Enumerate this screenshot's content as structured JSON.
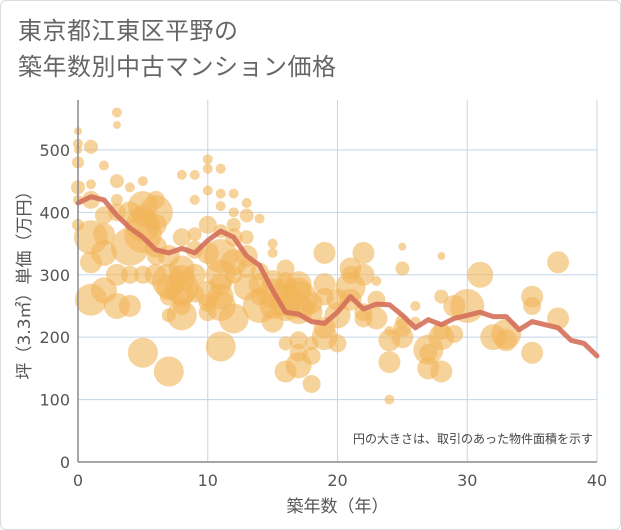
{
  "header": {
    "title_line1": "東京都江東区平野の",
    "title_line2": "築年数別中古マンション価格"
  },
  "chart_data": {
    "type": "scatter",
    "title": "東京都江東区平野の 築年数別中古マンション価格",
    "xlabel": "築年数（年）",
    "ylabel": "坪（3.3㎡）単価（万円）",
    "xlim": [
      0,
      40
    ],
    "ylim": [
      0,
      580
    ],
    "xticks": [
      0,
      10,
      20,
      30,
      40
    ],
    "yticks": [
      0,
      100,
      200,
      300,
      400,
      500
    ],
    "grid": true,
    "note": "円の大きさは、取引のあった物件面積を示す",
    "colors": {
      "bubble": "#f2b55a",
      "trend": "#d4705a",
      "grid": "#c5d5e5",
      "axis": "#888888"
    },
    "points": [
      [
        0,
        530,
        4
      ],
      [
        0,
        510,
        5
      ],
      [
        0,
        500,
        4
      ],
      [
        0,
        480,
        6
      ],
      [
        0,
        440,
        7
      ],
      [
        0,
        420,
        5
      ],
      [
        0,
        380,
        6
      ],
      [
        1,
        505,
        7
      ],
      [
        1,
        445,
        5
      ],
      [
        1,
        420,
        9
      ],
      [
        1,
        360,
        17
      ],
      [
        1,
        320,
        11
      ],
      [
        1,
        260,
        16
      ],
      [
        2,
        475,
        5
      ],
      [
        2,
        395,
        9
      ],
      [
        2,
        365,
        11
      ],
      [
        2,
        335,
        13
      ],
      [
        2,
        275,
        13
      ],
      [
        3,
        560,
        5
      ],
      [
        3,
        540,
        4
      ],
      [
        3,
        450,
        7
      ],
      [
        3,
        420,
        6
      ],
      [
        3,
        400,
        9
      ],
      [
        3,
        300,
        11
      ],
      [
        3,
        250,
        13
      ],
      [
        4,
        440,
        5
      ],
      [
        4,
        400,
        11
      ],
      [
        4,
        345,
        19
      ],
      [
        4,
        300,
        9
      ],
      [
        4,
        250,
        11
      ],
      [
        5,
        450,
        5
      ],
      [
        5,
        410,
        15
      ],
      [
        5,
        395,
        11
      ],
      [
        5,
        380,
        17
      ],
      [
        5,
        365,
        19
      ],
      [
        5,
        300,
        9
      ],
      [
        5,
        175,
        15
      ],
      [
        6,
        420,
        9
      ],
      [
        6,
        400,
        17
      ],
      [
        6,
        380,
        11
      ],
      [
        6,
        345,
        11
      ],
      [
        6,
        330,
        9
      ],
      [
        6,
        300,
        11
      ],
      [
        7,
        330,
        11
      ],
      [
        7,
        290,
        17
      ],
      [
        7,
        280,
        13
      ],
      [
        7,
        265,
        9
      ],
      [
        7,
        235,
        7
      ],
      [
        7,
        145,
        15
      ],
      [
        8,
        460,
        5
      ],
      [
        8,
        360,
        9
      ],
      [
        8,
        310,
        13
      ],
      [
        8,
        295,
        13
      ],
      [
        8,
        280,
        17
      ],
      [
        8,
        270,
        13
      ],
      [
        8,
        250,
        9
      ],
      [
        8,
        235,
        15
      ],
      [
        9,
        460,
        5
      ],
      [
        9,
        420,
        5
      ],
      [
        9,
        365,
        7
      ],
      [
        9,
        340,
        9
      ],
      [
        9,
        300,
        11
      ],
      [
        9,
        270,
        9
      ],
      [
        10,
        485,
        5
      ],
      [
        10,
        470,
        5
      ],
      [
        10,
        435,
        5
      ],
      [
        10,
        380,
        9
      ],
      [
        10,
        335,
        11
      ],
      [
        10,
        270,
        13
      ],
      [
        10,
        255,
        9
      ],
      [
        10,
        240,
        9
      ],
      [
        11,
        470,
        5
      ],
      [
        11,
        430,
        5
      ],
      [
        11,
        410,
        5
      ],
      [
        11,
        370,
        7
      ],
      [
        11,
        330,
        17
      ],
      [
        11,
        300,
        15
      ],
      [
        11,
        285,
        11
      ],
      [
        11,
        265,
        13
      ],
      [
        11,
        250,
        15
      ],
      [
        11,
        185,
        15
      ],
      [
        12,
        430,
        5
      ],
      [
        12,
        400,
        5
      ],
      [
        12,
        380,
        7
      ],
      [
        12,
        360,
        9
      ],
      [
        12,
        320,
        13
      ],
      [
        12,
        300,
        9
      ],
      [
        12,
        230,
        15
      ],
      [
        13,
        415,
        5
      ],
      [
        13,
        395,
        7
      ],
      [
        13,
        360,
        7
      ],
      [
        13,
        330,
        11
      ],
      [
        13,
        310,
        9
      ],
      [
        13,
        280,
        13
      ],
      [
        14,
        390,
        5
      ],
      [
        14,
        305,
        9
      ],
      [
        14,
        285,
        11
      ],
      [
        14,
        265,
        9
      ],
      [
        14,
        250,
        17
      ],
      [
        15,
        350,
        5
      ],
      [
        15,
        335,
        5
      ],
      [
        15,
        290,
        11
      ],
      [
        15,
        270,
        15
      ],
      [
        15,
        250,
        13
      ],
      [
        15,
        225,
        11
      ],
      [
        16,
        310,
        9
      ],
      [
        16,
        290,
        9
      ],
      [
        16,
        275,
        13
      ],
      [
        16,
        260,
        17
      ],
      [
        16,
        250,
        15
      ],
      [
        16,
        190,
        7
      ],
      [
        16,
        145,
        11
      ],
      [
        17,
        285,
        13
      ],
      [
        17,
        275,
        13
      ],
      [
        17,
        260,
        19
      ],
      [
        17,
        245,
        15
      ],
      [
        17,
        195,
        9
      ],
      [
        17,
        175,
        9
      ],
      [
        17,
        155,
        13
      ],
      [
        18,
        255,
        11
      ],
      [
        18,
        240,
        11
      ],
      [
        18,
        190,
        7
      ],
      [
        18,
        170,
        9
      ],
      [
        18,
        125,
        9
      ],
      [
        19,
        335,
        11
      ],
      [
        19,
        285,
        11
      ],
      [
        19,
        265,
        9
      ],
      [
        19,
        215,
        11
      ],
      [
        19,
        200,
        13
      ],
      [
        20,
        260,
        11
      ],
      [
        20,
        235,
        13
      ],
      [
        20,
        190,
        9
      ],
      [
        21,
        310,
        11
      ],
      [
        21,
        300,
        9
      ],
      [
        21,
        280,
        15
      ],
      [
        21,
        260,
        11
      ],
      [
        22,
        335,
        11
      ],
      [
        22,
        300,
        11
      ],
      [
        22,
        240,
        9
      ],
      [
        22,
        230,
        9
      ],
      [
        23,
        290,
        5
      ],
      [
        23,
        260,
        9
      ],
      [
        23,
        230,
        11
      ],
      [
        24,
        210,
        5
      ],
      [
        24,
        195,
        11
      ],
      [
        24,
        160,
        11
      ],
      [
        24,
        100,
        5
      ],
      [
        25,
        345,
        4
      ],
      [
        25,
        310,
        7
      ],
      [
        25,
        225,
        7
      ],
      [
        25,
        215,
        9
      ],
      [
        25,
        200,
        11
      ],
      [
        26,
        250,
        5
      ],
      [
        26,
        225,
        5
      ],
      [
        27,
        180,
        15
      ],
      [
        27,
        175,
        9
      ],
      [
        27,
        150,
        11
      ],
      [
        28,
        330,
        4
      ],
      [
        28,
        265,
        7
      ],
      [
        28,
        210,
        9
      ],
      [
        28,
        200,
        13
      ],
      [
        28,
        145,
        11
      ],
      [
        29,
        250,
        11
      ],
      [
        29,
        205,
        9
      ],
      [
        30,
        250,
        17
      ],
      [
        31,
        300,
        13
      ],
      [
        32,
        200,
        13
      ],
      [
        33,
        205,
        15
      ],
      [
        33,
        195,
        11
      ],
      [
        35,
        265,
        11
      ],
      [
        35,
        250,
        9
      ],
      [
        35,
        175,
        11
      ],
      [
        37,
        320,
        11
      ],
      [
        37,
        230,
        11
      ]
    ],
    "trend": {
      "x": [
        0,
        1,
        2,
        3,
        4,
        5,
        6,
        7,
        8,
        9,
        10,
        11,
        12,
        13,
        14,
        15,
        16,
        17,
        18,
        19,
        20,
        21,
        22,
        23,
        24,
        25,
        26,
        27,
        28,
        29,
        30,
        31,
        32,
        33,
        34,
        35,
        36,
        37,
        38,
        39,
        40
      ],
      "y": [
        415,
        425,
        420,
        395,
        375,
        360,
        340,
        335,
        342,
        335,
        355,
        370,
        360,
        330,
        315,
        275,
        240,
        237,
        225,
        222,
        240,
        265,
        245,
        253,
        252,
        235,
        215,
        228,
        220,
        230,
        235,
        240,
        233,
        233,
        212,
        225,
        220,
        215,
        195,
        190,
        170
      ]
    }
  }
}
